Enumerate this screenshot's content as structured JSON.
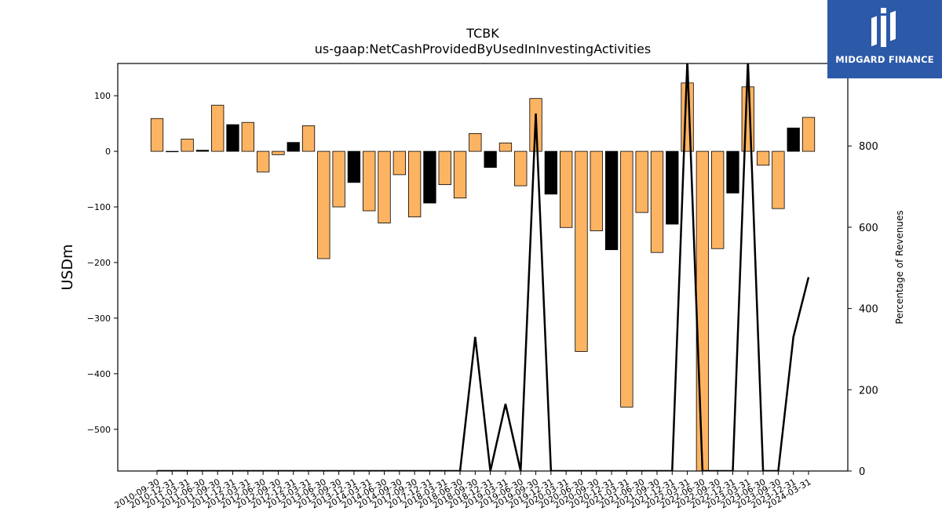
{
  "chart_data": {
    "type": "bar",
    "title": "TCBK",
    "subtitle": "us-gaap:NetCashProvidedByUsedInInvestingActivities",
    "ylabel": "USDm",
    "y2label": "Percentage of Revenues",
    "ylim": [
      -575,
      158
    ],
    "y2lim": [
      0,
      1003
    ],
    "yticks": [
      100,
      0,
      -100,
      -200,
      -300,
      -400,
      -500
    ],
    "y2ticks": [
      0,
      200,
      400,
      600,
      800
    ],
    "categories": [
      "2010-09-30",
      "2010-12-31",
      "2011-03-31",
      "2011-06-30",
      "2011-09-30",
      "2011-12-31",
      "2012-03-31",
      "2012-06-30",
      "2012-09-30",
      "2012-12-31",
      "2013-03-31",
      "2013-06-30",
      "2013-09-30",
      "2013-12-31",
      "2014-03-31",
      "2014-06-30",
      "2014-09-30",
      "2017-09-30",
      "2017-12-31",
      "2018-03-31",
      "2018-06-30",
      "2018-09-30",
      "2018-12-31",
      "2019-03-31",
      "2019-06-30",
      "2019-09-30",
      "2019-12-31",
      "2020-03-31",
      "2020-06-30",
      "2020-09-30",
      "2020-12-31",
      "2021-03-31",
      "2021-06-30",
      "2021-09-30",
      "2021-12-31",
      "2022-03-31",
      "2022-06-30",
      "2022-09-30",
      "2022-12-31",
      "2023-03-31",
      "2023-06-30",
      "2023-09-30",
      "2023-12-31",
      "2024-03-31"
    ],
    "series": [
      {
        "values": [
          59,
          0,
          22,
          2,
          83,
          48,
          52,
          -37,
          -6,
          16,
          46,
          -193,
          -100,
          -56,
          -107,
          -129,
          -42,
          -118,
          -93,
          -60,
          -84,
          32,
          -29,
          15,
          -62,
          95,
          -77,
          -137,
          -360,
          -143,
          -177,
          -460,
          -110,
          -182,
          -131,
          123,
          -575,
          -175,
          -75,
          116,
          -25,
          -103,
          42,
          61
        ],
        "colors": [
          "#fdb462",
          "#fdb462",
          "#fdb462",
          "#000000",
          "#fdb462",
          "#000000",
          "#fdb462",
          "#fdb462",
          "#fdb462",
          "#000000",
          "#fdb462",
          "#fdb462",
          "#fdb462",
          "#000000",
          "#fdb462",
          "#fdb462",
          "#fdb462",
          "#fdb462",
          "#000000",
          "#fdb462",
          "#fdb462",
          "#fdb462",
          "#000000",
          "#fdb462",
          "#fdb462",
          "#fdb462",
          "#000000",
          "#fdb462",
          "#fdb462",
          "#fdb462",
          "#000000",
          "#fdb462",
          "#fdb462",
          "#fdb462",
          "#000000",
          "#fdb462",
          "#fdb462",
          "#fdb462",
          "#000000",
          "#fdb462",
          "#fdb462",
          "#fdb462",
          "#000000",
          "#fdb462"
        ]
      },
      {
        "type": "line",
        "axis": "right",
        "color": "#000000",
        "values": [
          0,
          0,
          0,
          0,
          0,
          0,
          0,
          0,
          0,
          0,
          0,
          0,
          0,
          0,
          0,
          0,
          0,
          0,
          0,
          0,
          0,
          330,
          0,
          165,
          0,
          880,
          0,
          0,
          0,
          0,
          0,
          0,
          0,
          0,
          0,
          1010,
          0,
          0,
          0,
          1010,
          0,
          0,
          330,
          477
        ]
      }
    ]
  },
  "logo": {
    "text": "MIDGARD FINANCE"
  }
}
